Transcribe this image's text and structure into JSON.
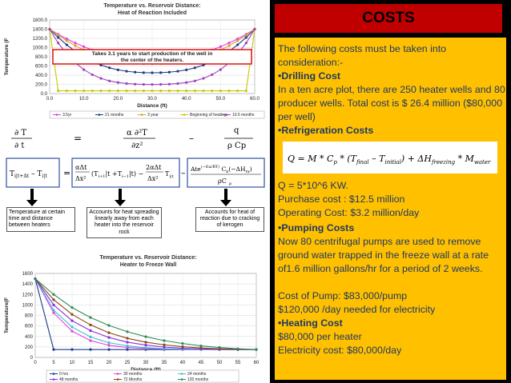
{
  "slide": {
    "title": "COSTS",
    "colors": {
      "title_bg": "#c00000",
      "content_bg": "#ffc000",
      "text": "#1f3864",
      "frame": "#000000"
    }
  },
  "costs": {
    "intro": "The following costs must be taken into consideration:-",
    "drilling_heading": "•Drilling Cost",
    "drilling_text": "In a ten acre plot, there are 250 heater wells and 80 producer wells. Total cost is $ 26.4 million ($80,000 per well)",
    "refrigeration_heading": "•Refrigeration Costs",
    "refrigeration_formula": "Q = M * Cp * (Tfinal – Tinitial) + ΔHfreezing * Mwater",
    "q_value": "Q = 5*10^6 KW.",
    "purchase_cost": "Purchase cost : $12.5 million",
    "operating_cost": "Operating Cost: $3.2 million/day",
    "pumping_heading": "•Pumping Costs",
    "pumping_text": "Now 80 centrifugal pumps are used to remove ground water trapped in the freeze wall at a rate of1.6 million gallons/hr for a period of 2 weeks.",
    "pump_cost": "Cost of Pump: $83,000/pump",
    "electricity_pumping": "$120,000 /day needed for electricity",
    "heating_heading": "•Heating Cost",
    "heater_cost": "$80,000 per heater",
    "electricity_heating": "Electricity cost: $80,000/day"
  },
  "equation": {
    "lhs_top": "∂ T",
    "lhs_bottom": "∂ t",
    "mid_top": "α ∂²T",
    "mid_bottom": "∂z²",
    "rhs_top": "q",
    "rhs_bottom": "ρ Cp",
    "annotations": [
      "Temperature at certain time and distance between heaters",
      "Accounts for heat spreading linearly away from each heater into the reservoir rock",
      "Accounts for heat of reaction due to cracking of kerogen"
    ]
  },
  "chart_data": [
    {
      "type": "line",
      "title": "Temperature vs. Reservoir Distance: Heat of Reaction Included",
      "xlabel": "Distance (ft)",
      "ylabel": "Temperature (F",
      "xlim": [
        0,
        60
      ],
      "ylim": [
        0,
        1600
      ],
      "xticks": [
        "0.0",
        "10.0",
        "20.0",
        "30.0",
        "40.0",
        "50.0",
        "60.0"
      ],
      "yticks": [
        "0.0",
        "200.0",
        "400.0",
        "600.0",
        "800.0",
        "1000.0",
        "1200.0",
        "1400.0",
        "1600.0"
      ],
      "annotation": "Takes 3.1 years to start production of the well in the center of the heaters.",
      "x": [
        0,
        2.5,
        5,
        7.5,
        10,
        12.5,
        15,
        17.5,
        20,
        22.5,
        25,
        27.5,
        30,
        32.5,
        35,
        37.5,
        40,
        42.5,
        45,
        47.5,
        50,
        52.5,
        55,
        57.5,
        60
      ],
      "series": [
        {
          "name": "3.5yr",
          "color": "#e040e0",
          "values": [
            1400,
            1290,
            1190,
            1100,
            1020,
            950,
            890,
            845,
            810,
            785,
            770,
            762,
            760,
            762,
            770,
            785,
            810,
            845,
            890,
            950,
            1020,
            1100,
            1190,
            1290,
            1400
          ]
        },
        {
          "name": "21 months",
          "color": "#1a3a8a",
          "values": [
            1400,
            1220,
            1060,
            920,
            800,
            700,
            620,
            560,
            515,
            485,
            465,
            455,
            452,
            455,
            465,
            485,
            515,
            560,
            620,
            700,
            800,
            920,
            1060,
            1220,
            1400
          ]
        },
        {
          "name": "3 year",
          "color": "#d9a020",
          "values": [
            1400,
            1270,
            1150,
            1040,
            950,
            870,
            800,
            745,
            705,
            678,
            660,
            652,
            650,
            652,
            660,
            678,
            705,
            745,
            800,
            870,
            950,
            1040,
            1150,
            1270,
            1400
          ]
        },
        {
          "name": "Beginning of heating",
          "color": "#c8c800",
          "values": [
            1400,
            60,
            60,
            60,
            60,
            60,
            60,
            60,
            60,
            60,
            60,
            60,
            60,
            60,
            60,
            60,
            60,
            60,
            60,
            60,
            60,
            60,
            60,
            60,
            1400
          ]
        },
        {
          "name": "10.5 months",
          "color": "#a040c0",
          "values": [
            1400,
            1100,
            860,
            670,
            520,
            410,
            330,
            275,
            240,
            218,
            205,
            199,
            197,
            199,
            205,
            218,
            240,
            275,
            330,
            410,
            520,
            670,
            860,
            1100,
            1400
          ]
        }
      ]
    },
    {
      "type": "line",
      "title": "Temperature vs. Reservoir Distance: Heater to Freeze Wall",
      "xlabel": "Distance (ft)",
      "ylabel": "Temperature(F",
      "xlim": [
        0,
        60
      ],
      "ylim": [
        0,
        1600
      ],
      "xticks": [
        "0",
        "5",
        "10",
        "15",
        "20",
        "25",
        "30",
        "35",
        "40",
        "45",
        "50",
        "55",
        "60"
      ],
      "yticks": [
        "0",
        "200",
        "400",
        "600",
        "800",
        "1000",
        "1200",
        "1400",
        "1600"
      ],
      "x": [
        0,
        5,
        10,
        15,
        20,
        25,
        30,
        35,
        40,
        45,
        50,
        55,
        60
      ],
      "series": [
        {
          "name": "0 hrs",
          "color": "#1a3a8a",
          "values": [
            1500,
            150,
            150,
            150,
            150,
            150,
            150,
            150,
            150,
            150,
            150,
            150,
            150
          ]
        },
        {
          "name": "30 months",
          "color": "#e040e0",
          "values": [
            1500,
            850,
            500,
            320,
            230,
            190,
            170,
            160,
            155,
            152,
            151,
            150,
            150
          ]
        },
        {
          "name": "24 months",
          "color": "#40c0d0",
          "values": [
            1500,
            900,
            580,
            390,
            280,
            220,
            185,
            168,
            158,
            153,
            151,
            150,
            150
          ]
        },
        {
          "name": "48 months",
          "color": "#8a2be2",
          "values": [
            1500,
            1000,
            700,
            510,
            380,
            290,
            235,
            198,
            175,
            162,
            155,
            151,
            150
          ]
        },
        {
          "name": "72 Months",
          "color": "#8b4513",
          "values": [
            1500,
            1100,
            820,
            620,
            470,
            365,
            290,
            240,
            205,
            180,
            165,
            155,
            150
          ]
        },
        {
          "name": "120 months",
          "color": "#2e8b57",
          "values": [
            1500,
            1200,
            950,
            760,
            610,
            490,
            395,
            320,
            265,
            220,
            190,
            165,
            150
          ]
        }
      ]
    }
  ]
}
